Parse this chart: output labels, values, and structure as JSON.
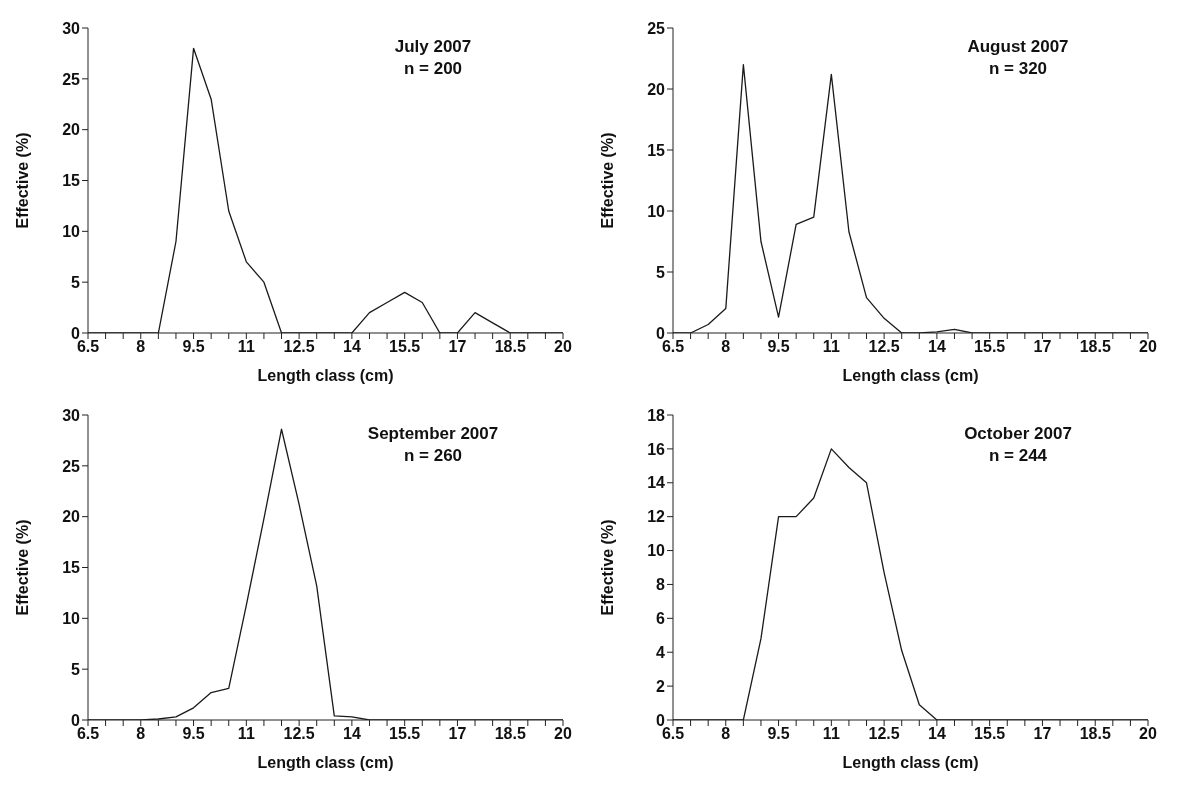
{
  "chart_data": [
    {
      "type": "line",
      "annotations": [
        "July 2007",
        "n = 200"
      ],
      "xlabel": "Length class (cm)",
      "ylabel": "Effective (%)",
      "marker": "none",
      "categories": [
        "6.5",
        null,
        null,
        "8",
        null,
        null,
        "9.5",
        null,
        null,
        "11",
        null,
        null,
        "12.5",
        null,
        null,
        "14",
        null,
        null,
        "15.5",
        null,
        null,
        "17",
        null,
        null,
        "18.5",
        null,
        null,
        "20"
      ],
      "ylim": [
        0,
        30
      ],
      "yticks": [
        0,
        5,
        10,
        15,
        20,
        25,
        30
      ],
      "series": [
        {
          "color": "#1a1a1a",
          "values": [
            0,
            0,
            0,
            0,
            0,
            9,
            28,
            23,
            12,
            7,
            5,
            0,
            0,
            0,
            0,
            0,
            2,
            3,
            4,
            3,
            0,
            0,
            2,
            1,
            0,
            0,
            0,
            0
          ]
        }
      ]
    },
    {
      "type": "line",
      "annotations": [
        "August 2007",
        "n = 320"
      ],
      "xlabel": "Length class (cm)",
      "ylabel": "Effective (%)",
      "marker": "none",
      "categories": [
        "6.5",
        null,
        null,
        "8",
        null,
        null,
        "9.5",
        null,
        null,
        "11",
        null,
        null,
        "12.5",
        null,
        null,
        "14",
        null,
        null,
        "15.5",
        null,
        null,
        "17",
        null,
        null,
        "18.5",
        null,
        null,
        "20"
      ],
      "ylim": [
        0,
        25
      ],
      "yticks": [
        0,
        5,
        10,
        15,
        20,
        25
      ],
      "series": [
        {
          "color": "#1a1a1a",
          "values": [
            0,
            0,
            0.7,
            2,
            22,
            7.5,
            1.3,
            8.9,
            9.5,
            21.2,
            8.3,
            2.9,
            1.2,
            0,
            0,
            0.1,
            0.3,
            0,
            0,
            0,
            0,
            0,
            0,
            0,
            0,
            0,
            0,
            0
          ]
        }
      ]
    },
    {
      "type": "line",
      "annotations": [
        "September 2007",
        "n = 260"
      ],
      "xlabel": "Length class (cm)",
      "ylabel": "Effective (%)",
      "marker": "none",
      "categories": [
        "6.5",
        null,
        null,
        "8",
        null,
        null,
        "9.5",
        null,
        null,
        "11",
        null,
        null,
        "12.5",
        null,
        null,
        "14",
        null,
        null,
        "15.5",
        null,
        null,
        "17",
        null,
        null,
        "18.5",
        null,
        null,
        "20"
      ],
      "ylim": [
        0,
        30
      ],
      "yticks": [
        0,
        5,
        10,
        15,
        20,
        25,
        30
      ],
      "series": [
        {
          "color": "#1a1a1a",
          "values": [
            0,
            0,
            0,
            0,
            0.1,
            0.3,
            1.2,
            2.7,
            3.1,
            11.3,
            19.8,
            28.6,
            21.2,
            13.2,
            0.4,
            0.3,
            0,
            0,
            0,
            0,
            0,
            0,
            0,
            0,
            0,
            0,
            0,
            0
          ]
        }
      ]
    },
    {
      "type": "line",
      "annotations": [
        "October 2007",
        "n = 244"
      ],
      "xlabel": "Length class (cm)",
      "ylabel": "Effective (%)",
      "marker": "none",
      "categories": [
        "6.5",
        null,
        null,
        "8",
        null,
        null,
        "9.5",
        null,
        null,
        "11",
        null,
        null,
        "12.5",
        null,
        null,
        "14",
        null,
        null,
        "15.5",
        null,
        null,
        "17",
        null,
        null,
        "18.5",
        null,
        null,
        "20"
      ],
      "ylim": [
        0,
        18
      ],
      "yticks": [
        0,
        2,
        4,
        6,
        8,
        10,
        12,
        14,
        16,
        18
      ],
      "series": [
        {
          "color": "#1a1a1a",
          "values": [
            0,
            0,
            0,
            0,
            0,
            4.8,
            12,
            12,
            13.1,
            16,
            14.9,
            14,
            8.7,
            4.1,
            0.9,
            0,
            0,
            0,
            0,
            0,
            0,
            0,
            0,
            0,
            0,
            0,
            0,
            0
          ]
        }
      ]
    }
  ]
}
